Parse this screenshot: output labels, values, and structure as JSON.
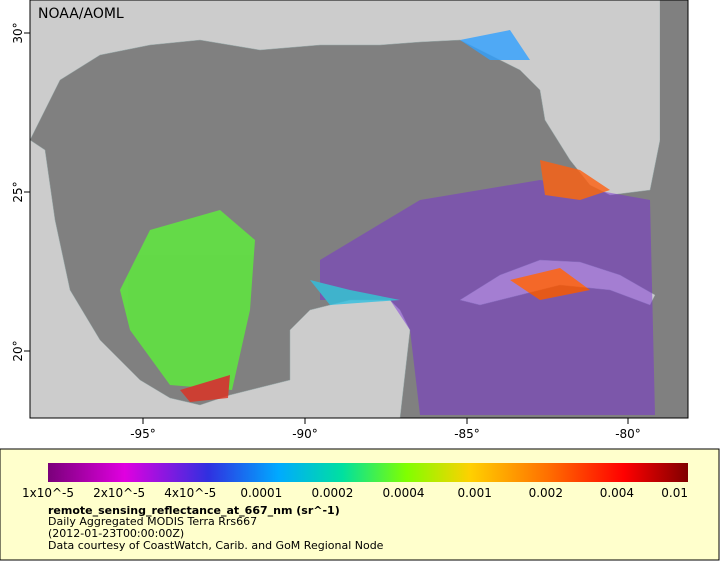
{
  "map": {
    "credit": "NOAA/AOML",
    "lon_ticks": [
      "-95°",
      "-90°",
      "-85°",
      "-80°"
    ],
    "lat_ticks": [
      "30°",
      "25°",
      "20°"
    ]
  },
  "colorbar": {
    "labels": [
      "1x10^-5",
      "2x10^-5",
      "4x10^-5",
      "0.0001",
      "0.0002",
      "0.0004",
      "0.001",
      "0.002",
      "0.004",
      "0.01"
    ]
  },
  "legend": {
    "variable": "remote_sensing_reflectance_at_667_nm (sr^-1)",
    "description": "Daily Aggregated MODIS Terra Rrs667",
    "time": "(2012-01-23T00:00:00Z)",
    "source": "Data courtesy of CoastWatch, Carib. and GoM Regional Node"
  }
}
